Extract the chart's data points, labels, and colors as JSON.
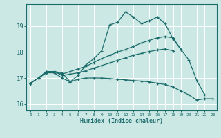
{
  "xlabel": "Humidex (Indice chaleur)",
  "bg_color": "#cce8e4",
  "line_color": "#1a6b6b",
  "grid_color": "#ffffff",
  "xlim": [
    -0.5,
    23.5
  ],
  "ylim": [
    15.75,
    19.85
  ],
  "yticks": [
    16,
    17,
    18,
    19
  ],
  "xticks": [
    0,
    1,
    2,
    3,
    4,
    5,
    6,
    7,
    8,
    9,
    10,
    11,
    12,
    13,
    14,
    15,
    16,
    17,
    18,
    19,
    20,
    21,
    22,
    23
  ],
  "lines": [
    {
      "x": [
        0,
        1,
        2,
        3,
        4,
        5,
        6,
        7,
        8,
        9,
        10,
        11,
        12,
        13,
        14,
        15,
        16,
        17,
        18,
        19,
        20,
        21,
        22
      ],
      "y": [
        16.8,
        17.0,
        17.2,
        17.25,
        17.2,
        16.85,
        17.1,
        17.5,
        17.75,
        18.05,
        19.05,
        19.15,
        19.55,
        19.35,
        19.1,
        19.2,
        19.35,
        19.1,
        18.5,
        18.1,
        17.7,
        16.9,
        16.35
      ]
    },
    {
      "x": [
        0,
        1,
        2,
        3,
        4,
        5,
        6,
        7,
        8,
        9,
        10,
        11,
        12,
        13,
        14,
        15,
        16,
        17,
        18,
        19
      ],
      "y": [
        16.8,
        17.0,
        17.25,
        17.25,
        17.15,
        17.25,
        17.35,
        17.45,
        17.6,
        17.75,
        17.88,
        18.0,
        18.1,
        18.22,
        18.35,
        18.45,
        18.55,
        18.6,
        18.55,
        18.1
      ]
    },
    {
      "x": [
        0,
        1,
        2,
        3,
        4,
        5,
        6,
        7,
        8,
        9,
        10,
        11,
        12,
        13,
        14,
        15,
        16,
        17,
        18
      ],
      "y": [
        16.8,
        17.0,
        17.25,
        17.25,
        17.1,
        17.15,
        17.2,
        17.28,
        17.38,
        17.48,
        17.58,
        17.68,
        17.78,
        17.88,
        17.95,
        18.02,
        18.08,
        18.12,
        18.05
      ]
    },
    {
      "x": [
        0,
        1,
        2,
        3,
        4,
        5,
        6,
        7,
        8,
        9,
        10,
        11,
        12,
        13,
        14,
        15,
        16,
        17,
        18,
        19,
        20,
        21,
        22,
        23
      ],
      "y": [
        16.8,
        17.0,
        17.2,
        17.2,
        17.0,
        16.85,
        16.95,
        17.0,
        17.0,
        17.0,
        16.98,
        16.95,
        16.93,
        16.9,
        16.88,
        16.85,
        16.8,
        16.75,
        16.65,
        16.5,
        16.35,
        16.15,
        16.2,
        16.2
      ]
    }
  ]
}
